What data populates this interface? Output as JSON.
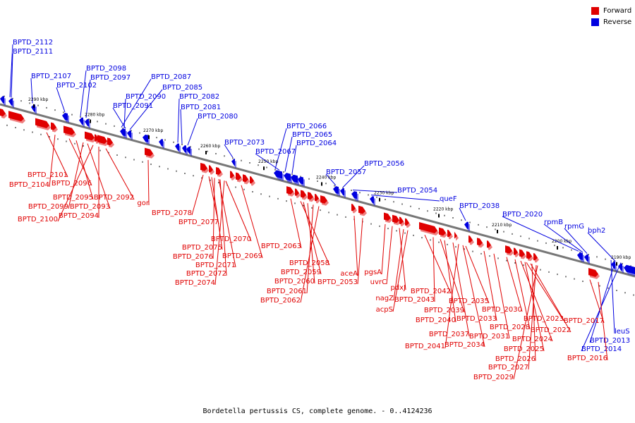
{
  "legend": {
    "forward_label": "Forward",
    "reverse_label": "Reverse",
    "forward_color": "#e00000",
    "reverse_color": "#0000e0"
  },
  "caption": "Bordetella pertussis CS, complete genome. - 0..4124236",
  "kbp_ticks": [
    "2290 kbp",
    "2280 kbp",
    "2270 kbp",
    "2260 kbp",
    "2250 kbp",
    "2240 kbp",
    "2230 kbp",
    "2220 kbp",
    "2210 kbp",
    "2200 kbp",
    "2190 kbp"
  ],
  "reverse_genes": [
    "BPTD_2112",
    "BPTD_2111",
    "BPTD_2107",
    "BPTD_2102",
    "BPTD_2098",
    "BPTD_2097",
    "BPTD_2087",
    "BPTD_2085",
    "BPTD_2090",
    "BPTD_2091",
    "BPTD_2082",
    "BPTD_2081",
    "BPTD_2080",
    "BPTD_2066",
    "BPTD_2065",
    "BPTD_2064",
    "BPTD_2073",
    "BPTD_2067",
    "BPTD_2056",
    "BPTD_2057",
    "BPTD_2054",
    "queF",
    "BPTD_2038",
    "BPTD_2020",
    "rpmB",
    "rpmG",
    "bph2",
    "leuS",
    "BPTD_2013",
    "BPTD_2014"
  ],
  "forward_genes": [
    "BPTD_2101",
    "BPTD_2104",
    "BPTD_2096",
    "BPTD_2095",
    "BPTD_2099",
    "BPTD_2093",
    "BPTD_2092",
    "BPTD_2100",
    "BPTD_2094",
    "gor",
    "BPTD_2078",
    "BPTD_2077",
    "BPTD_2070",
    "BPTD_2075",
    "BPTD_2076",
    "BPTD_2069",
    "BPTD_2071",
    "BPTD_2072",
    "BPTD_2074",
    "BPTD_2063",
    "BPTD_2058",
    "BPTD_2059",
    "BPTD_2060",
    "BPTD_2061",
    "BPTD_2062",
    "aceA",
    "BPTD_2053",
    "pgsA",
    "uvrC",
    "pdxJ",
    "nagZ",
    "acpS",
    "BPTD_2042",
    "BPTD_2043",
    "BPTD_2035",
    "BPTD_2039",
    "BPTD_2033",
    "BPTD_2040",
    "BPTD_2037",
    "BPTD_2041",
    "BPTD_2034",
    "BPTD_2030",
    "BPTD_2031",
    "BPTD_2028",
    "BPTD_2023",
    "BPTD_2022",
    "BPTD_2024",
    "BPTD_2025",
    "BPTD_2026",
    "BPTD_2027",
    "BPTD_2029",
    "BPTD_2017",
    "BPTD_2016"
  ]
}
